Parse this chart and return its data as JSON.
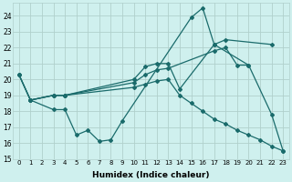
{
  "xlabel": "Humidex (Indice chaleur)",
  "bg_color": "#cff0ee",
  "grid_color": "#b0d0cc",
  "line_color": "#1a6b6b",
  "xlim": [
    -0.5,
    23.5
  ],
  "ylim": [
    15,
    24.8
  ],
  "yticks": [
    15,
    16,
    17,
    18,
    19,
    20,
    21,
    22,
    23,
    24
  ],
  "xtick_labels": [
    "0",
    "1",
    "2",
    "3",
    "4",
    "5",
    "6",
    "7",
    "8",
    "9",
    "10",
    "11",
    "12",
    "13",
    "14",
    "15",
    "16",
    "17",
    "18",
    "19",
    "20",
    "21",
    "22",
    "23"
  ],
  "series": [
    {
      "x": [
        0,
        1,
        3,
        4,
        5,
        6,
        7,
        8,
        9,
        15,
        16,
        17,
        20,
        22,
        23
      ],
      "y": [
        20.3,
        18.7,
        18.1,
        18.1,
        16.5,
        16.8,
        16.1,
        16.2,
        17.4,
        23.9,
        24.5,
        22.2,
        20.9,
        17.8,
        15.5
      ]
    },
    {
      "x": [
        0,
        1,
        3,
        4,
        10,
        11,
        12,
        13,
        14,
        17,
        18,
        22
      ],
      "y": [
        20.3,
        18.7,
        19.0,
        19.0,
        20.0,
        20.8,
        21.0,
        21.0,
        19.4,
        22.2,
        22.5,
        22.2
      ]
    },
    {
      "x": [
        0,
        1,
        3,
        4,
        10,
        11,
        12,
        13,
        17,
        18,
        19,
        20
      ],
      "y": [
        20.3,
        18.7,
        19.0,
        19.0,
        19.8,
        20.3,
        20.6,
        20.7,
        21.8,
        22.0,
        20.9,
        20.9
      ]
    },
    {
      "x": [
        1,
        3,
        4,
        10,
        11,
        12,
        13,
        14,
        15,
        16,
        17,
        18,
        19,
        20,
        21,
        22,
        23
      ],
      "y": [
        18.7,
        19.0,
        19.0,
        19.5,
        19.7,
        19.9,
        20.0,
        19.0,
        18.5,
        18.0,
        17.5,
        17.2,
        16.8,
        16.5,
        16.2,
        15.8,
        15.5
      ]
    }
  ]
}
